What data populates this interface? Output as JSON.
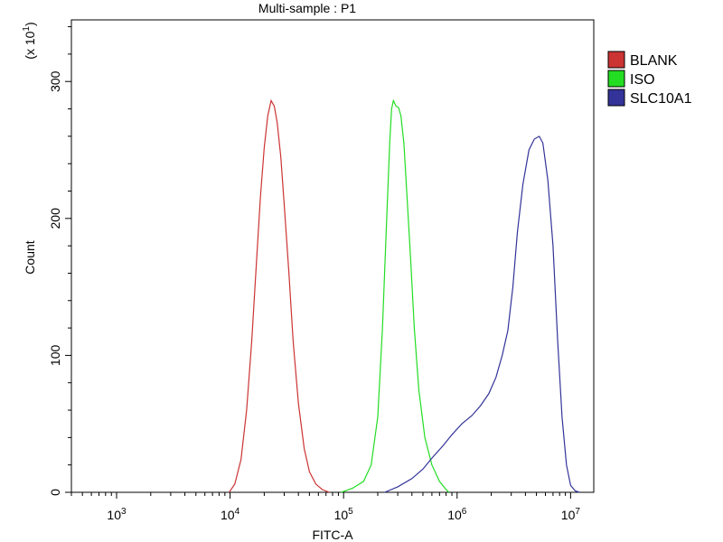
{
  "chart_data": {
    "type": "line",
    "title": "Multi-sample : P1",
    "xlabel": "FITC-A",
    "ylabel": "Count",
    "y_multiplier": {
      "base": "(x 10",
      "exp": "1",
      "close": ")"
    },
    "x_scale": "log",
    "xlim": [
      400,
      16000000
    ],
    "ylim": [
      0,
      345
    ],
    "x_ticks": [
      {
        "value": 1000,
        "base": "10",
        "exp": "3"
      },
      {
        "value": 10000,
        "base": "10",
        "exp": "4"
      },
      {
        "value": 100000,
        "base": "10",
        "exp": "5"
      },
      {
        "value": 1000000,
        "base": "10",
        "exp": "6"
      },
      {
        "value": 10000000,
        "base": "10",
        "exp": "7"
      }
    ],
    "y_ticks": [
      {
        "value": 0,
        "label": "0"
      },
      {
        "value": 100,
        "label": "100"
      },
      {
        "value": 200,
        "label": "200"
      },
      {
        "value": 300,
        "label": "300"
      }
    ],
    "legend_position": "right",
    "series": [
      {
        "name": "BLANK",
        "color": "#cc3333",
        "points": [
          [
            9800,
            0
          ],
          [
            11000,
            6
          ],
          [
            12500,
            24
          ],
          [
            14000,
            60
          ],
          [
            15500,
            110
          ],
          [
            17000,
            165
          ],
          [
            18500,
            215
          ],
          [
            20000,
            252
          ],
          [
            21500,
            275
          ],
          [
            23000,
            286
          ],
          [
            24500,
            282
          ],
          [
            26000,
            270
          ],
          [
            28000,
            245
          ],
          [
            30000,
            210
          ],
          [
            33000,
            160
          ],
          [
            36000,
            110
          ],
          [
            40000,
            65
          ],
          [
            45000,
            32
          ],
          [
            50000,
            15
          ],
          [
            57000,
            6
          ],
          [
            65000,
            2
          ],
          [
            75000,
            0
          ]
        ]
      },
      {
        "name": "ISO",
        "color": "#22dd22",
        "points": [
          [
            95000,
            0
          ],
          [
            120000,
            3
          ],
          [
            150000,
            8
          ],
          [
            175000,
            20
          ],
          [
            200000,
            55
          ],
          [
            220000,
            120
          ],
          [
            240000,
            200
          ],
          [
            255000,
            255
          ],
          [
            265000,
            280
          ],
          [
            275000,
            286
          ],
          [
            290000,
            282
          ],
          [
            305000,
            281
          ],
          [
            320000,
            275
          ],
          [
            340000,
            255
          ],
          [
            360000,
            220
          ],
          [
            390000,
            170
          ],
          [
            420000,
            120
          ],
          [
            460000,
            75
          ],
          [
            520000,
            40
          ],
          [
            600000,
            20
          ],
          [
            700000,
            8
          ],
          [
            800000,
            2
          ],
          [
            850000,
            0
          ]
        ]
      },
      {
        "name": "SLC10A1",
        "color": "#333399",
        "points": [
          [
            230000,
            0
          ],
          [
            300000,
            4
          ],
          [
            400000,
            10
          ],
          [
            500000,
            17
          ],
          [
            600000,
            25
          ],
          [
            750000,
            34
          ],
          [
            900000,
            42
          ],
          [
            1100000,
            50
          ],
          [
            1350000,
            56
          ],
          [
            1600000,
            63
          ],
          [
            1900000,
            72
          ],
          [
            2200000,
            84
          ],
          [
            2500000,
            100
          ],
          [
            2800000,
            118
          ],
          [
            3100000,
            150
          ],
          [
            3400000,
            190
          ],
          [
            3800000,
            225
          ],
          [
            4300000,
            250
          ],
          [
            4800000,
            258
          ],
          [
            5300000,
            260
          ],
          [
            5700000,
            255
          ],
          [
            6300000,
            228
          ],
          [
            7000000,
            180
          ],
          [
            7700000,
            110
          ],
          [
            8400000,
            55
          ],
          [
            9200000,
            20
          ],
          [
            10000000,
            5
          ],
          [
            11000000,
            1
          ],
          [
            12000000,
            0
          ]
        ]
      }
    ]
  }
}
